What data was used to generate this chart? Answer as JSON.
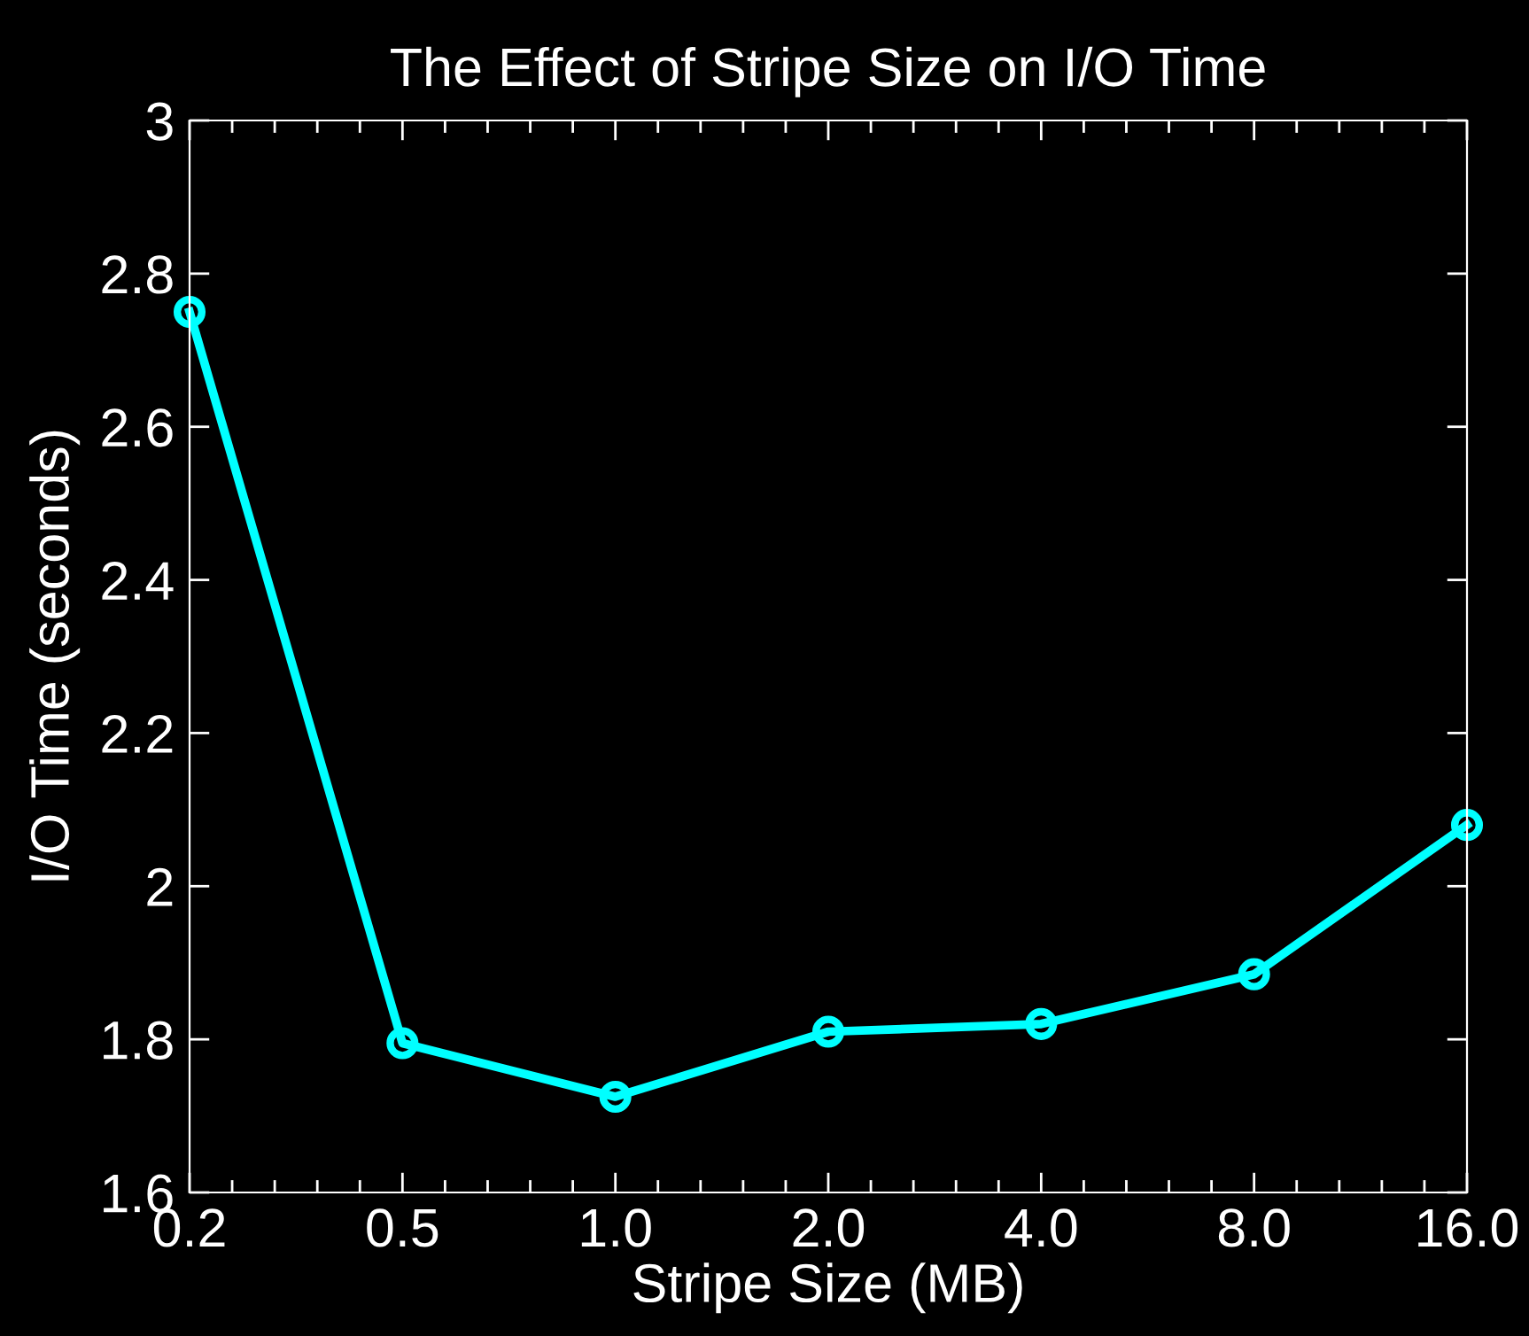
{
  "chart_data": {
    "type": "line",
    "title": "The Effect of Stripe Size on I/O Time",
    "xlabel": "Stripe Size (MB)",
    "ylabel": "I/O Time (seconds)",
    "log": "x",
    "x": [
      0.25,
      0.5,
      1,
      2,
      4,
      8,
      16
    ],
    "series": [
      {
        "color": "#00ffff",
        "values": [
          2.75,
          1.795,
          1.725,
          1.81,
          1.82,
          1.885,
          2.08
        ]
      }
    ],
    "xlim": [
      0.25,
      16
    ],
    "xticks": [
      {
        "value": 0.25,
        "label": "0.2"
      },
      {
        "value": 0.5,
        "label": "0.5"
      },
      {
        "value": 1,
        "label": "1.0"
      },
      {
        "value": 2,
        "label": "2.0"
      },
      {
        "value": 4,
        "label": "4.0"
      },
      {
        "value": 8,
        "label": "8.0"
      },
      {
        "value": 16,
        "label": "16.0"
      }
    ],
    "ylim": [
      1.6,
      3
    ],
    "yticks": [
      1.6,
      1.8,
      2,
      2.2,
      2.4,
      2.6,
      2.8,
      3
    ],
    "grid": false,
    "legend": false,
    "marker": "circle",
    "line_style": "solid"
  }
}
